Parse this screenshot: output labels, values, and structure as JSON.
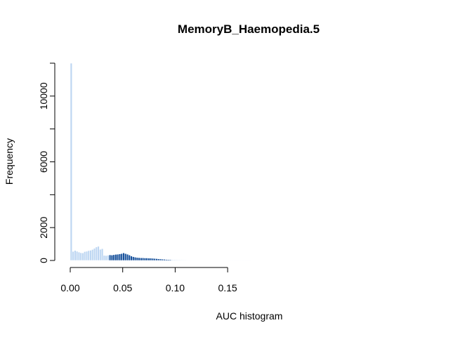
{
  "chart_data": {
    "type": "bar",
    "title": "MemoryB_Haemopedia.5",
    "xlabel": "AUC histogram",
    "ylabel": "Frequency",
    "xlim": [
      -0.002,
      0.174
    ],
    "ylim": [
      0,
      12000
    ],
    "x_ticks": [
      {
        "value": 0.0,
        "label": "0.00"
      },
      {
        "value": 0.05,
        "label": "0.05"
      },
      {
        "value": 0.1,
        "label": "0.10"
      },
      {
        "value": 0.15,
        "label": "0.15"
      }
    ],
    "y_ticks": [
      {
        "value": 0,
        "label": "0",
        "labeled": true
      },
      {
        "value": 2000,
        "label": "2000",
        "labeled": true
      },
      {
        "value": 4000,
        "label": "4000",
        "labeled": false
      },
      {
        "value": 6000,
        "label": "6000",
        "labeled": true
      },
      {
        "value": 8000,
        "label": "8000",
        "labeled": false
      },
      {
        "value": 10000,
        "label": "10000",
        "labeled": true
      },
      {
        "value": 12000,
        "label": "12000",
        "labeled": false
      }
    ],
    "bin_start": 0.0,
    "bin_width": 0.00185,
    "highlight_range": [
      0.0379,
      0.0962
    ],
    "colors": {
      "base": "#bdd6f2",
      "highlight": "#16509b",
      "bar_edge": "#ffffff"
    },
    "values": [
      12000,
      550,
      610,
      560,
      510,
      470,
      460,
      540,
      560,
      600,
      620,
      670,
      740,
      820,
      860,
      680,
      720,
      310,
      300,
      320,
      340,
      330,
      350,
      370,
      380,
      400,
      420,
      460,
      420,
      380,
      330,
      270,
      230,
      200,
      180,
      170,
      160,
      160,
      150,
      150,
      140,
      140,
      130,
      120,
      110,
      100,
      90,
      80,
      70,
      60,
      55,
      50,
      45,
      42,
      40,
      38,
      35,
      32,
      30,
      28,
      26,
      25,
      24,
      22,
      20,
      20,
      18,
      17,
      16,
      15,
      14,
      13,
      12,
      12,
      11,
      10,
      10,
      9,
      9,
      8,
      8,
      7,
      7,
      6,
      6,
      6,
      5,
      5,
      5,
      4,
      4,
      4,
      3
    ]
  }
}
